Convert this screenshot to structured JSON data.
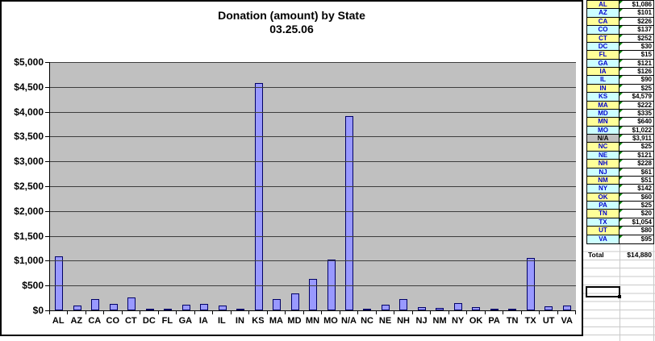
{
  "chart_data": {
    "type": "bar",
    "title": "Donation (amount) by State",
    "subtitle": "03.25.06",
    "categories": [
      "AL",
      "AZ",
      "CA",
      "CO",
      "CT",
      "DC",
      "FL",
      "GA",
      "IA",
      "IL",
      "IN",
      "KS",
      "MA",
      "MD",
      "MN",
      "MO",
      "N/A",
      "NC",
      "NE",
      "NH",
      "NJ",
      "NM",
      "NY",
      "OK",
      "PA",
      "TN",
      "TX",
      "UT",
      "VA"
    ],
    "values": [
      1086,
      101,
      226,
      137,
      252,
      30,
      15,
      121,
      126,
      90,
      25,
      4579,
      222,
      335,
      640,
      1022,
      3911,
      25,
      121,
      228,
      61,
      51,
      142,
      60,
      25,
      20,
      1054,
      80,
      95
    ],
    "xlabel": "",
    "ylabel": "",
    "ylim": [
      0,
      5000
    ],
    "ytick_interval": 500,
    "ytick_labels": [
      "$0",
      "$500",
      "$1,000",
      "$1,500",
      "$2,000",
      "$2,500",
      "$3,000",
      "$3,500",
      "$4,000",
      "$4,500",
      "$5,000"
    ],
    "grid": true,
    "legend": "none",
    "plot_bg_color": "#C0C0C0",
    "bar_fill_color": "#9999FF",
    "bar_border_color": "#000066"
  },
  "table": {
    "rows": [
      {
        "state": "AL",
        "value": "$1,086",
        "fill": "yellow"
      },
      {
        "state": "AZ",
        "value": "$101",
        "fill": "cyan"
      },
      {
        "state": "CA",
        "value": "$226",
        "fill": "yellow"
      },
      {
        "state": "CO",
        "value": "$137",
        "fill": "cyan"
      },
      {
        "state": "CT",
        "value": "$252",
        "fill": "yellow"
      },
      {
        "state": "DC",
        "value": "$30",
        "fill": "cyan"
      },
      {
        "state": "FL",
        "value": "$15",
        "fill": "yellow"
      },
      {
        "state": "GA",
        "value": "$121",
        "fill": "cyan"
      },
      {
        "state": "IA",
        "value": "$126",
        "fill": "yellow"
      },
      {
        "state": "IL",
        "value": "$90",
        "fill": "cyan"
      },
      {
        "state": "IN",
        "value": "$25",
        "fill": "yellow"
      },
      {
        "state": "KS",
        "value": "$4,579",
        "fill": "cyan"
      },
      {
        "state": "MA",
        "value": "$222",
        "fill": "yellow"
      },
      {
        "state": "MD",
        "value": "$335",
        "fill": "cyan"
      },
      {
        "state": "MN",
        "value": "$640",
        "fill": "yellow"
      },
      {
        "state": "MO",
        "value": "$1,022",
        "fill": "cyan"
      },
      {
        "state": "N/A",
        "value": "$3,911",
        "fill": "gray"
      },
      {
        "state": "NC",
        "value": "$25",
        "fill": "yellow"
      },
      {
        "state": "NE",
        "value": "$121",
        "fill": "cyan"
      },
      {
        "state": "NH",
        "value": "$228",
        "fill": "yellow"
      },
      {
        "state": "NJ",
        "value": "$61",
        "fill": "cyan"
      },
      {
        "state": "NM",
        "value": "$51",
        "fill": "yellow"
      },
      {
        "state": "NY",
        "value": "$142",
        "fill": "cyan"
      },
      {
        "state": "OK",
        "value": "$60",
        "fill": "yellow"
      },
      {
        "state": "PA",
        "value": "$25",
        "fill": "cyan"
      },
      {
        "state": "TN",
        "value": "$20",
        "fill": "yellow"
      },
      {
        "state": "TX",
        "value": "$1,054",
        "fill": "cyan"
      },
      {
        "state": "UT",
        "value": "$80",
        "fill": "yellow"
      },
      {
        "state": "VA",
        "value": "$95",
        "fill": "cyan"
      }
    ],
    "total_label": "Total",
    "total_value": "$14,880"
  },
  "colors": {
    "yellow": "#FFFF99",
    "cyan": "#CCFFFF",
    "gray": "#C0C0C0",
    "state_text": "#0000CC",
    "value_text": "#000000",
    "flag_green": "#008000"
  }
}
